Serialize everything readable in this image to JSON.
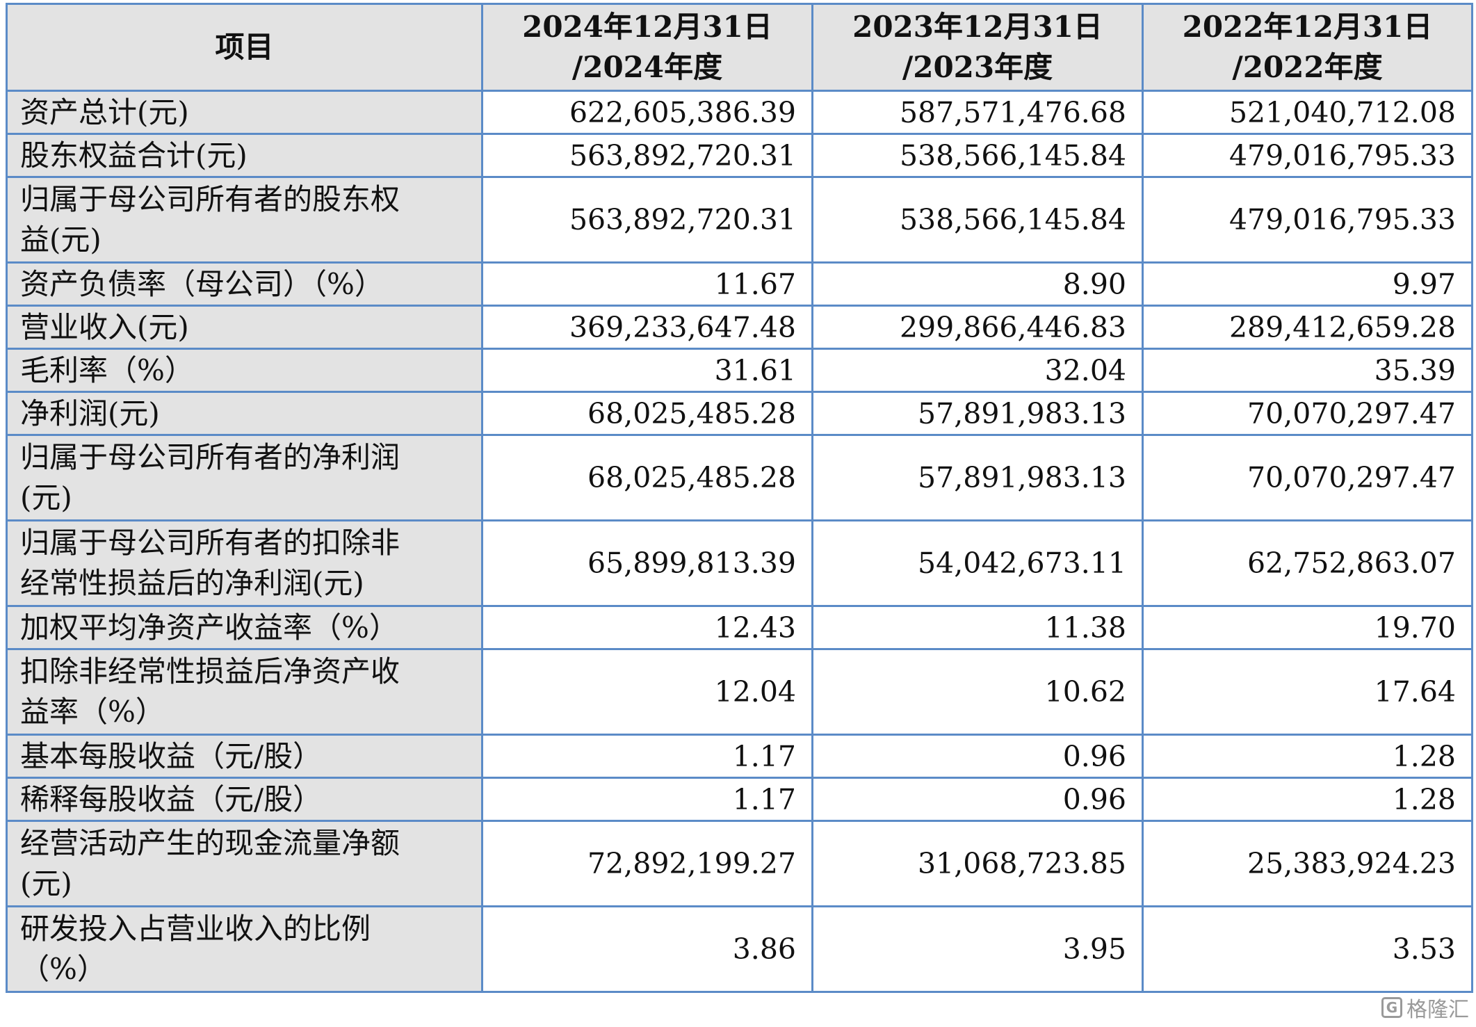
{
  "table": {
    "headers": [
      [
        "项目"
      ],
      [
        "2024年12月31日",
        "/2024年度"
      ],
      [
        "2023年12月31日",
        "/2023年度"
      ],
      [
        "2022年12月31日",
        "/2022年度"
      ]
    ],
    "rows": [
      {
        "label": [
          "资产总计(元)"
        ],
        "values": [
          "622,605,386.39",
          "587,571,476.68",
          "521,040,712.08"
        ]
      },
      {
        "label": [
          "股东权益合计(元)"
        ],
        "values": [
          "563,892,720.31",
          "538,566,145.84",
          "479,016,795.33"
        ]
      },
      {
        "label": [
          "归属于母公司所有者的股东权",
          "益(元)"
        ],
        "values": [
          "563,892,720.31",
          "538,566,145.84",
          "479,016,795.33"
        ]
      },
      {
        "label": [
          "资产负债率（母公司）（%）"
        ],
        "values": [
          "11.67",
          "8.90",
          "9.97"
        ]
      },
      {
        "label": [
          "营业收入(元)"
        ],
        "values": [
          "369,233,647.48",
          "299,866,446.83",
          "289,412,659.28"
        ]
      },
      {
        "label": [
          "毛利率（%）"
        ],
        "values": [
          "31.61",
          "32.04",
          "35.39"
        ]
      },
      {
        "label": [
          "净利润(元)"
        ],
        "values": [
          "68,025,485.28",
          "57,891,983.13",
          "70,070,297.47"
        ]
      },
      {
        "label": [
          "归属于母公司所有者的净利润",
          "(元)"
        ],
        "values": [
          "68,025,485.28",
          "57,891,983.13",
          "70,070,297.47"
        ]
      },
      {
        "label": [
          "归属于母公司所有者的扣除非",
          "经常性损益后的净利润(元)"
        ],
        "values": [
          "65,899,813.39",
          "54,042,673.11",
          "62,752,863.07"
        ]
      },
      {
        "label": [
          "加权平均净资产收益率（%）"
        ],
        "values": [
          "12.43",
          "11.38",
          "19.70"
        ]
      },
      {
        "label": [
          "扣除非经常性损益后净资产收",
          "益率（%）"
        ],
        "values": [
          "12.04",
          "10.62",
          "17.64"
        ]
      },
      {
        "label": [
          "基本每股收益（元/股）"
        ],
        "values": [
          "1.17",
          "0.96",
          "1.28"
        ]
      },
      {
        "label": [
          "稀释每股收益（元/股）"
        ],
        "values": [
          "1.17",
          "0.96",
          "1.28"
        ]
      },
      {
        "label": [
          "经营活动产生的现金流量净额",
          "(元)"
        ],
        "values": [
          "72,892,199.27",
          "31,068,723.85",
          "25,383,924.23"
        ]
      },
      {
        "label": [
          "研发投入占营业收入的比例",
          "（%）"
        ],
        "values": [
          "3.86",
          "3.95",
          "3.53"
        ]
      }
    ]
  },
  "watermark": {
    "icon": "G",
    "text": "格隆汇"
  }
}
